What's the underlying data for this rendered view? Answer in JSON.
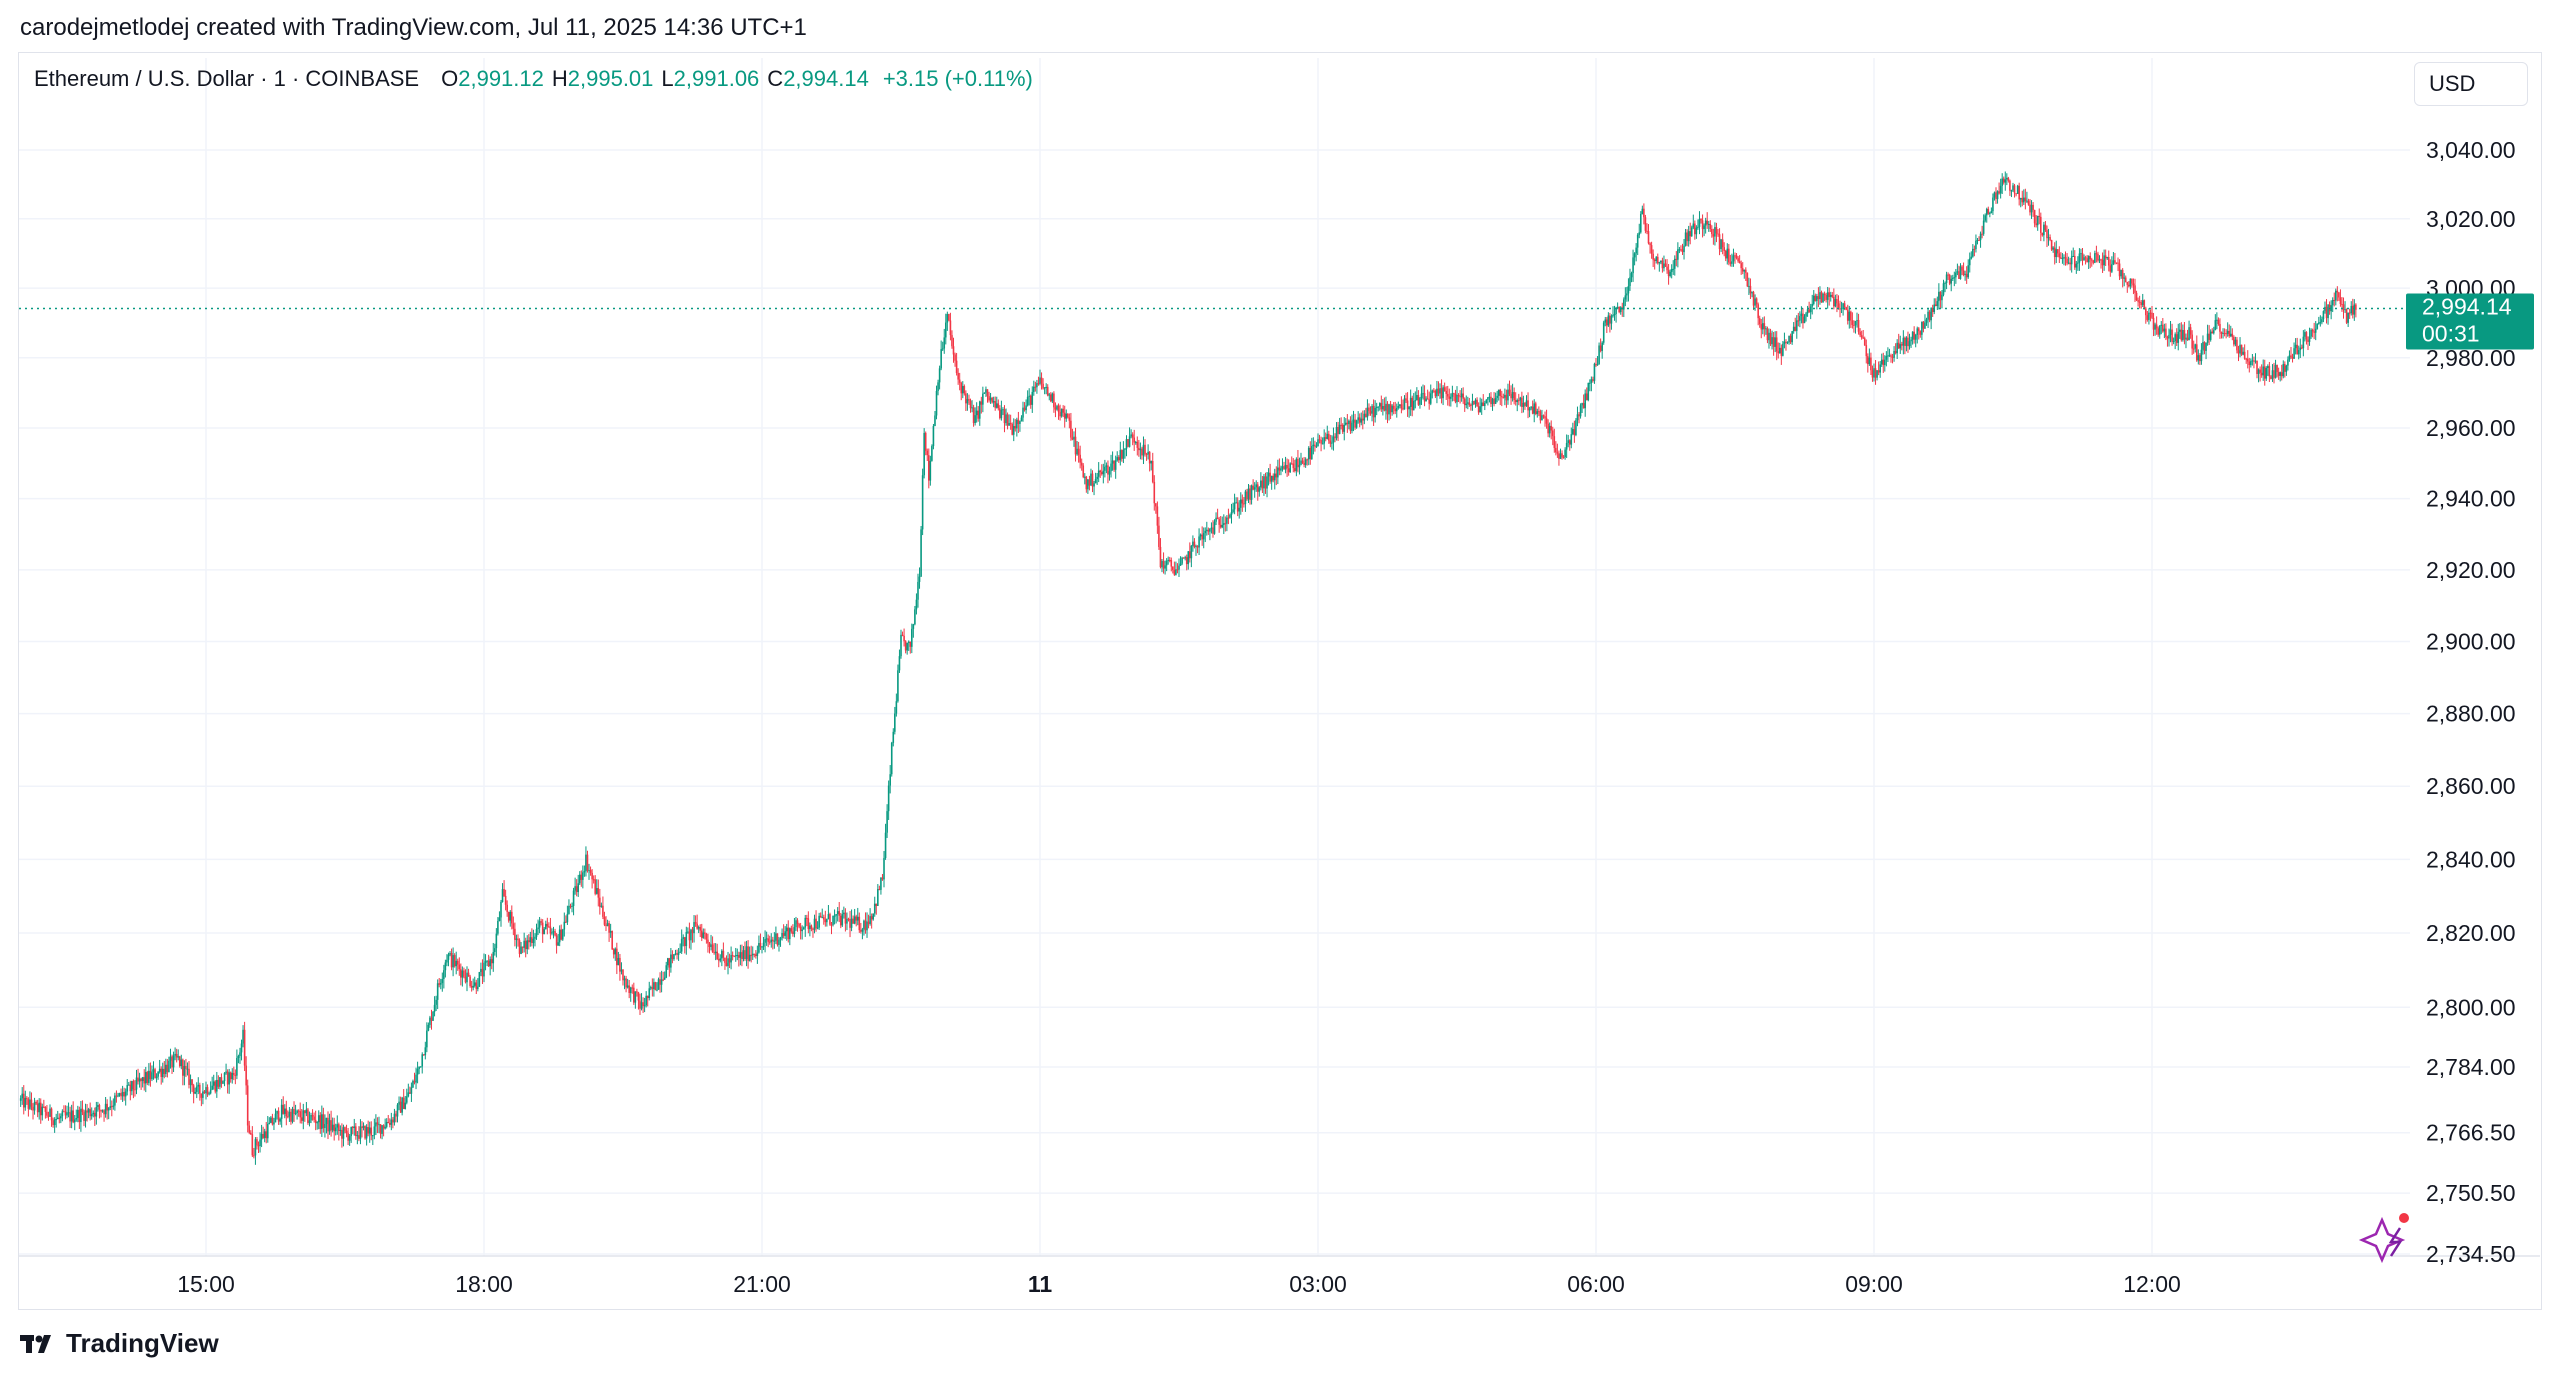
{
  "caption": "carodejmetlodej created with TradingView.com, Jul 11, 2025 14:36 UTC+1",
  "legend": {
    "symbol": "Ethereum / U.S. Dollar · 1 · COINBASE",
    "open_label": "O",
    "open": "2,991.12",
    "high_label": "H",
    "high": "2,995.01",
    "low_label": "L",
    "low": "2,991.06",
    "close_label": "C",
    "close": "2,994.14",
    "change": "+3.15 (+0.11%)"
  },
  "currency": "USD",
  "last_price": {
    "price": "2,994.14",
    "countdown": "00:31"
  },
  "footer": {
    "brand": "TradingView"
  },
  "colors": {
    "up": "#089981",
    "down": "#F23645",
    "grid": "#f0f3fa",
    "axis_text": "#131722"
  },
  "chart_data": {
    "type": "candlestick",
    "title": "Ethereum / U.S. Dollar · 1 · COINBASE",
    "price_scale": "log",
    "ylim": [
      2734.5,
      3052
    ],
    "y_ticks": [
      2734.5,
      2750.5,
      2766.5,
      2784.0,
      2800.0,
      2820.0,
      2840.0,
      2860.0,
      2880.0,
      2900.0,
      2920.0,
      2940.0,
      2960.0,
      2980.0,
      3000.0,
      3020.0,
      3040.0
    ],
    "y_tick_labels": [
      "2,734.50",
      "2,750.50",
      "2,766.50",
      "2,784.00",
      "2,800.00",
      "2,820.00",
      "2,840.00",
      "2,860.00",
      "2,880.00",
      "2,900.00",
      "2,920.00",
      "2,940.00",
      "2,960.00",
      "2,980.00",
      "3,000.00",
      "3,020.00",
      "3,040.00"
    ],
    "x_range_hours": [
      13.0,
      37.0
    ],
    "x_ticks": [
      15,
      18,
      21,
      24,
      27,
      30,
      33,
      36
    ],
    "x_tick_labels": [
      "15:00",
      "18:00",
      "21:00",
      "11",
      "03:00",
      "06:00",
      "09:00",
      "12:00"
    ],
    "x_tick_bold": [
      false,
      false,
      false,
      true,
      false,
      false,
      false,
      false
    ],
    "last_price": 2994.14,
    "price_path": [
      [
        13.0,
        2775
      ],
      [
        13.4,
        2770
      ],
      [
        13.9,
        2773
      ],
      [
        14.3,
        2780
      ],
      [
        14.7,
        2786
      ],
      [
        14.9,
        2777
      ],
      [
        15.3,
        2782
      ],
      [
        15.4,
        2792
      ],
      [
        15.45,
        2770
      ],
      [
        15.5,
        2762
      ],
      [
        15.8,
        2772
      ],
      [
        16.2,
        2770
      ],
      [
        16.5,
        2766
      ],
      [
        16.8,
        2767
      ],
      [
        17.0,
        2770
      ],
      [
        17.2,
        2777
      ],
      [
        17.3,
        2784
      ],
      [
        17.5,
        2805
      ],
      [
        17.6,
        2814
      ],
      [
        17.9,
        2806
      ],
      [
        18.1,
        2814
      ],
      [
        18.2,
        2830
      ],
      [
        18.4,
        2815
      ],
      [
        18.6,
        2822
      ],
      [
        18.8,
        2818
      ],
      [
        19.0,
        2832
      ],
      [
        19.1,
        2840
      ],
      [
        19.3,
        2824
      ],
      [
        19.5,
        2808
      ],
      [
        19.7,
        2800
      ],
      [
        19.9,
        2808
      ],
      [
        20.1,
        2816
      ],
      [
        20.3,
        2822
      ],
      [
        20.6,
        2812
      ],
      [
        20.9,
        2815
      ],
      [
        21.1,
        2818
      ],
      [
        21.4,
        2822
      ],
      [
        21.8,
        2824
      ],
      [
        22.1,
        2822
      ],
      [
        22.2,
        2826
      ],
      [
        22.3,
        2835
      ],
      [
        22.4,
        2870
      ],
      [
        22.5,
        2900
      ],
      [
        22.6,
        2898
      ],
      [
        22.7,
        2920
      ],
      [
        22.75,
        2960
      ],
      [
        22.8,
        2946
      ],
      [
        22.9,
        2975
      ],
      [
        23.0,
        2992
      ],
      [
        23.1,
        2975
      ],
      [
        23.3,
        2962
      ],
      [
        23.4,
        2970
      ],
      [
        23.7,
        2960
      ],
      [
        24.0,
        2973
      ],
      [
        24.3,
        2962
      ],
      [
        24.5,
        2944
      ],
      [
        24.8,
        2950
      ],
      [
        25.0,
        2958
      ],
      [
        25.2,
        2950
      ],
      [
        25.3,
        2922
      ],
      [
        25.5,
        2920
      ],
      [
        25.7,
        2928
      ],
      [
        26.0,
        2935
      ],
      [
        26.3,
        2942
      ],
      [
        26.5,
        2946
      ],
      [
        26.8,
        2950
      ],
      [
        27.0,
        2955
      ],
      [
        27.3,
        2960
      ],
      [
        27.6,
        2965
      ],
      [
        28.0,
        2967
      ],
      [
        28.4,
        2970
      ],
      [
        28.7,
        2966
      ],
      [
        29.0,
        2970
      ],
      [
        29.3,
        2966
      ],
      [
        29.5,
        2960
      ],
      [
        29.6,
        2950
      ],
      [
        29.8,
        2962
      ],
      [
        30.0,
        2978
      ],
      [
        30.1,
        2990
      ],
      [
        30.3,
        2995
      ],
      [
        30.5,
        3022
      ],
      [
        30.6,
        3010
      ],
      [
        30.8,
        3005
      ],
      [
        31.0,
        3016
      ],
      [
        31.2,
        3020
      ],
      [
        31.4,
        3010
      ],
      [
        31.6,
        3005
      ],
      [
        31.8,
        2988
      ],
      [
        32.0,
        2982
      ],
      [
        32.2,
        2990
      ],
      [
        32.4,
        2998
      ],
      [
        32.6,
        2996
      ],
      [
        32.8,
        2990
      ],
      [
        33.0,
        2975
      ],
      [
        33.2,
        2982
      ],
      [
        33.4,
        2985
      ],
      [
        33.6,
        2992
      ],
      [
        33.8,
        3003
      ],
      [
        34.0,
        3005
      ],
      [
        34.2,
        3020
      ],
      [
        34.4,
        3032
      ],
      [
        34.6,
        3026
      ],
      [
        34.8,
        3018
      ],
      [
        35.0,
        3008
      ],
      [
        35.2,
        3008
      ],
      [
        35.4,
        3009
      ],
      [
        35.6,
        3006
      ],
      [
        35.8,
        3000
      ],
      [
        36.0,
        2990
      ],
      [
        36.2,
        2986
      ],
      [
        36.4,
        2987
      ],
      [
        36.5,
        2980
      ],
      [
        36.7,
        2990
      ],
      [
        36.9,
        2985
      ],
      [
        37.0,
        2980
      ],
      [
        37.2,
        2976
      ],
      [
        37.4,
        2976
      ],
      [
        37.6,
        2984
      ],
      [
        37.8,
        2990
      ],
      [
        38.0,
        2998
      ],
      [
        38.1,
        2992
      ],
      [
        38.2,
        2994.14
      ]
    ]
  }
}
